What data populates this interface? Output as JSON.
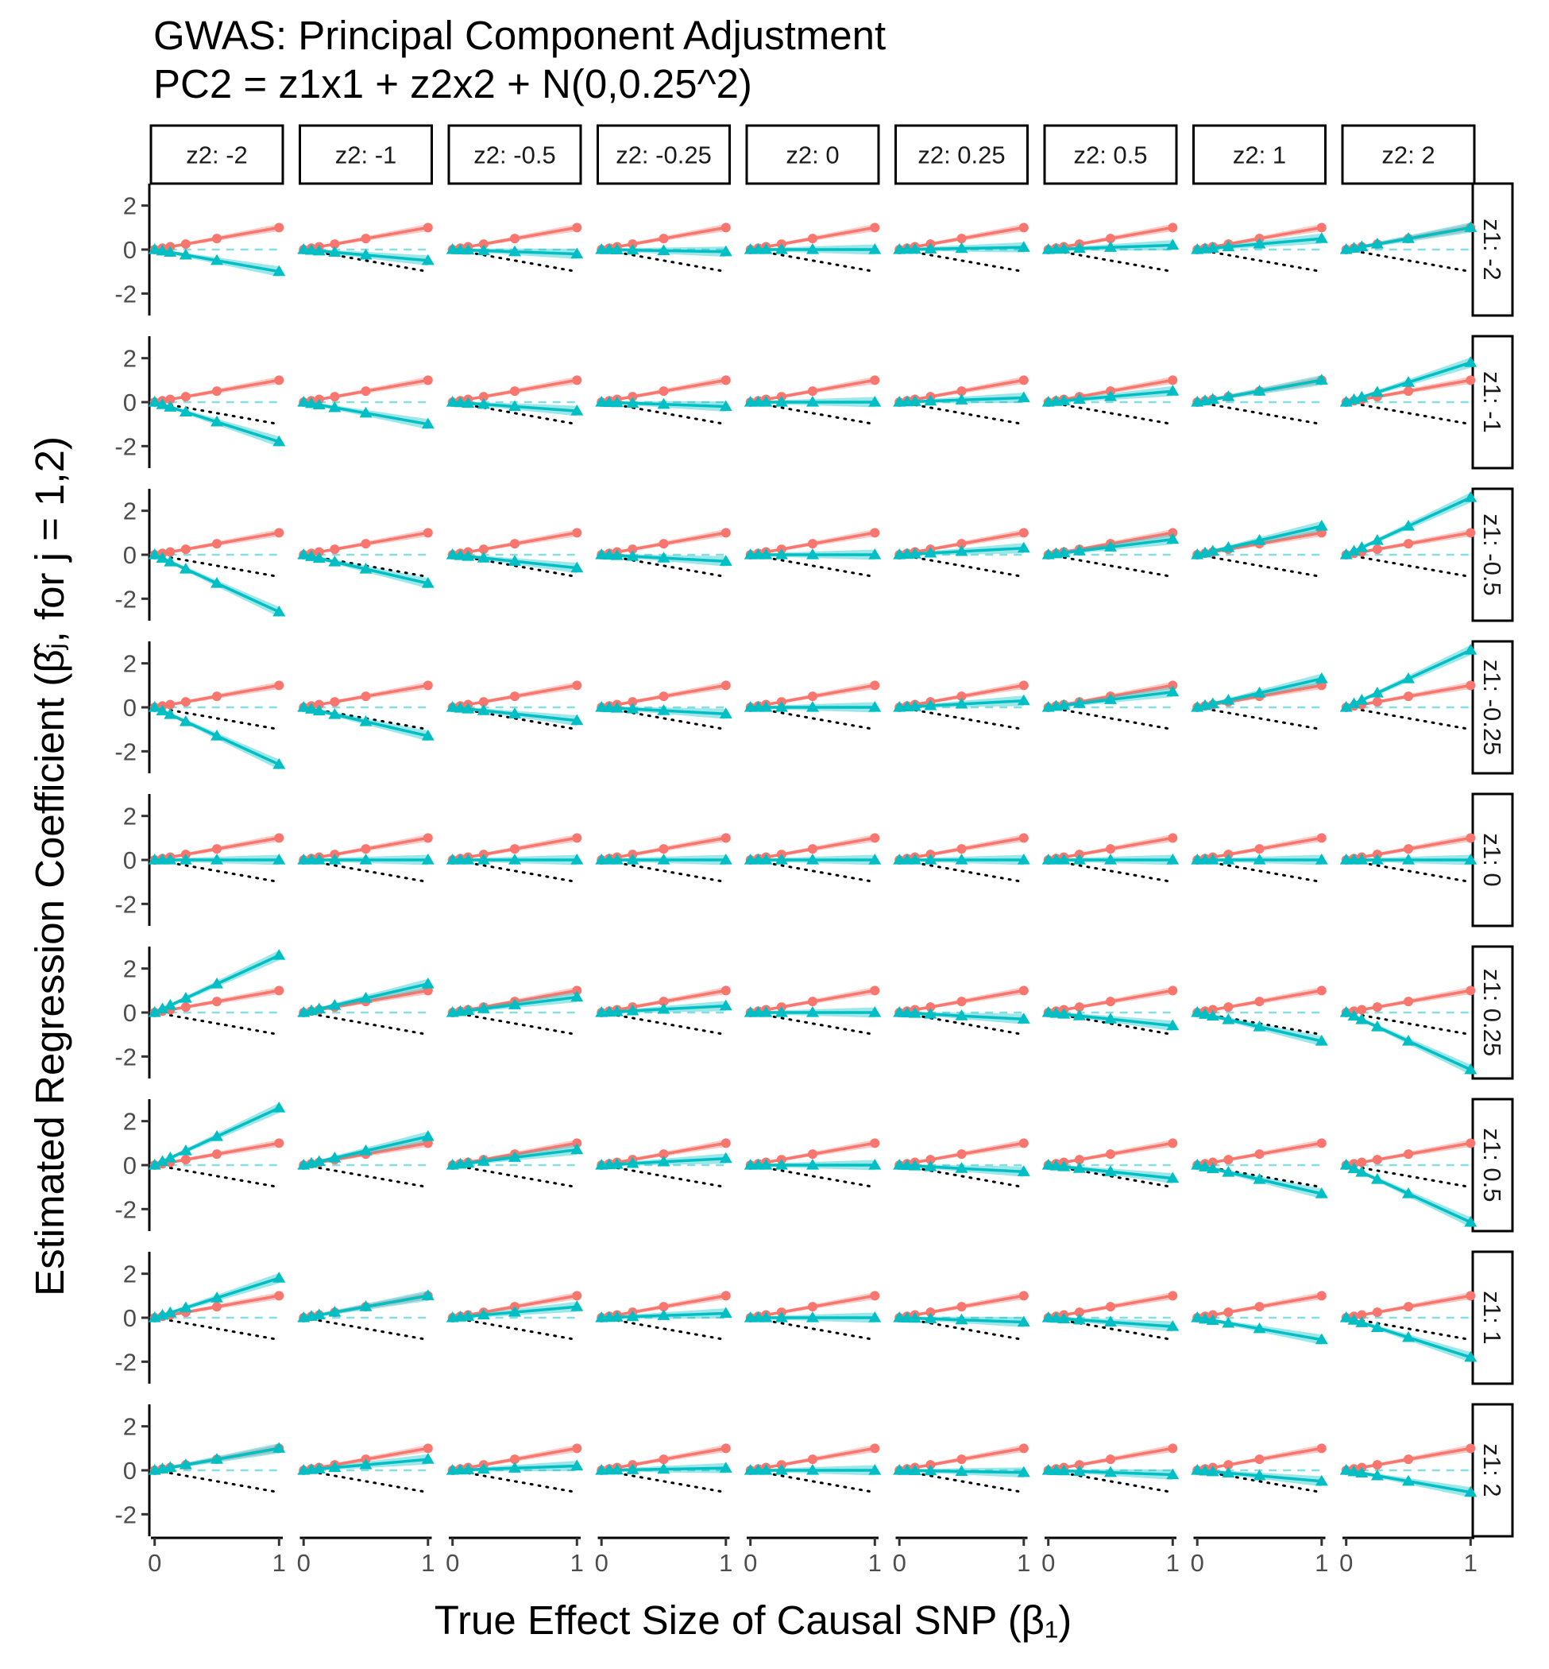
{
  "chart_data": {
    "type": "line",
    "title": "GWAS: Principal Component Adjustment",
    "subtitle": "PC2 = z1x1 + z2x2 + N(0,0.25^2)",
    "xlabel": "True Effect Size of Causal SNP (β₁)",
    "ylabel": "Estimated Regression Coefficient (β̂ⱼ, for j = 1,2)",
    "x": [
      0,
      0.0625,
      0.125,
      0.25,
      0.5,
      1
    ],
    "xlim": [
      -0.03,
      1.03
    ],
    "ylim": [
      -3,
      3
    ],
    "xticks": [
      0,
      1
    ],
    "yticks": [
      -2,
      0,
      2
    ],
    "xtick_labels": [
      "0",
      "1"
    ],
    "ytick_labels": [
      "-2",
      "0",
      "2"
    ],
    "grid": false,
    "legend": "none",
    "facet_col_labels": [
      "z2: -2",
      "z2: -1",
      "z2: -0.5",
      "z2: -0.25",
      "z2: 0",
      "z2: 0.25",
      "z2: 0.5",
      "z2: 1",
      "z2: 2"
    ],
    "facet_row_labels": [
      "z1: -2",
      "z1: -1",
      "z1: -0.5",
      "z1: -0.25",
      "z1: 0",
      "z1: 0.25",
      "z1: 0.5",
      "z1: 1",
      "z1: 2"
    ],
    "series": [
      {
        "marker": "circle",
        "color": "#F8766D",
        "band_color": "#F8766D",
        "slopes": [
          [
            1,
            1,
            1,
            1,
            1,
            1,
            1,
            1,
            1
          ],
          [
            1,
            1,
            1,
            1,
            1,
            1,
            1,
            1,
            1
          ],
          [
            1,
            1,
            1,
            1,
            1,
            1,
            1,
            1,
            1
          ],
          [
            1,
            1,
            1,
            1,
            1,
            1,
            1,
            1,
            1
          ],
          [
            1,
            1,
            1,
            1,
            1,
            1,
            1,
            1,
            1
          ],
          [
            1,
            1,
            1,
            1,
            1,
            1,
            1,
            1,
            1
          ],
          [
            1,
            1,
            1,
            1,
            1,
            1,
            1,
            1,
            1
          ],
          [
            1,
            1,
            1,
            1,
            1,
            1,
            1,
            1,
            1
          ],
          [
            1,
            1,
            1,
            1,
            1,
            1,
            1,
            1,
            1
          ]
        ]
      },
      {
        "marker": "triangle",
        "color": "#00BFC4",
        "band_color": "#00BFC4",
        "slopes": [
          [
            -1,
            -0.5,
            -0.2,
            -0.1,
            0,
            0.1,
            0.2,
            0.5,
            1
          ],
          [
            -1.8,
            -1,
            -0.4,
            -0.2,
            0,
            0.2,
            0.5,
            1,
            1.8
          ],
          [
            -2.6,
            -1.3,
            -0.6,
            -0.3,
            0,
            0.3,
            0.7,
            1.3,
            2.6
          ],
          [
            -2.6,
            -1.3,
            -0.6,
            -0.3,
            0,
            0.3,
            0.7,
            1.3,
            2.6
          ],
          [
            0,
            0,
            0,
            0,
            0,
            0,
            0,
            0,
            0
          ],
          [
            2.6,
            1.3,
            0.7,
            0.3,
            0,
            -0.3,
            -0.6,
            -1.3,
            -2.6
          ],
          [
            2.6,
            1.3,
            0.7,
            0.3,
            0,
            -0.3,
            -0.6,
            -1.3,
            -2.6
          ],
          [
            1.8,
            1,
            0.5,
            0.2,
            0,
            -0.2,
            -0.4,
            -1,
            -1.8
          ],
          [
            1,
            0.5,
            0.2,
            0.1,
            0,
            -0.1,
            -0.2,
            -0.5,
            -1
          ]
        ]
      }
    ],
    "reference_lines": [
      {
        "style": "dotted",
        "color": "#000000",
        "slope": 1,
        "intercept": 0
      },
      {
        "style": "dotted",
        "color": "#000000",
        "slope": -1,
        "intercept": 0
      },
      {
        "style": "dashed",
        "color": "#5FD3D6",
        "slope": 0,
        "intercept": 0
      }
    ]
  }
}
